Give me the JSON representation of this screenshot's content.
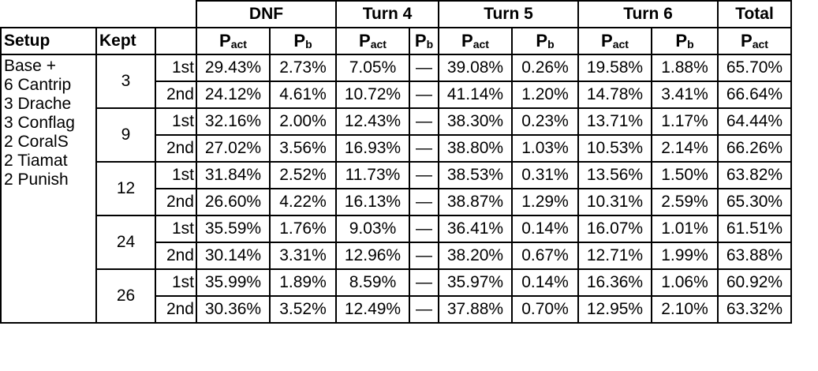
{
  "header_groups": {
    "dnf": "DNF",
    "turn4": "Turn 4",
    "turn5": "Turn 5",
    "turn6": "Turn 6",
    "total": "Total"
  },
  "subheaders": {
    "setup": "Setup",
    "kept": "Kept",
    "p_base": "P",
    "act_sub": "act",
    "b_sub": "b"
  },
  "setup_lines": [
    "Base +",
    "6 Cantrip",
    "3 Drache",
    "3 Conflag",
    "2 CoralS",
    "2 Tiamat",
    "2 Punish"
  ],
  "groups": [
    {
      "kept": "3",
      "rows": [
        {
          "ord": "1st",
          "dnf_act": "29.43%",
          "dnf_b": "2.73%",
          "t4_act": "7.05%",
          "t4_b": "—",
          "t5_act": "39.08%",
          "t5_b": "0.26%",
          "t6_act": "19.58%",
          "t6_b": "1.88%",
          "total": "65.70%"
        },
        {
          "ord": "2nd",
          "dnf_act": "24.12%",
          "dnf_b": "4.61%",
          "t4_act": "10.72%",
          "t4_b": "—",
          "t5_act": "41.14%",
          "t5_b": "1.20%",
          "t6_act": "14.78%",
          "t6_b": "3.41%",
          "total": "66.64%"
        }
      ]
    },
    {
      "kept": "9",
      "rows": [
        {
          "ord": "1st",
          "dnf_act": "32.16%",
          "dnf_b": "2.00%",
          "t4_act": "12.43%",
          "t4_b": "—",
          "t5_act": "38.30%",
          "t5_b": "0.23%",
          "t6_act": "13.71%",
          "t6_b": "1.17%",
          "total": "64.44%"
        },
        {
          "ord": "2nd",
          "dnf_act": "27.02%",
          "dnf_b": "3.56%",
          "t4_act": "16.93%",
          "t4_b": "—",
          "t5_act": "38.80%",
          "t5_b": "1.03%",
          "t6_act": "10.53%",
          "t6_b": "2.14%",
          "total": "66.26%"
        }
      ]
    },
    {
      "kept": "12",
      "rows": [
        {
          "ord": "1st",
          "dnf_act": "31.84%",
          "dnf_b": "2.52%",
          "t4_act": "11.73%",
          "t4_b": "—",
          "t5_act": "38.53%",
          "t5_b": "0.31%",
          "t6_act": "13.56%",
          "t6_b": "1.50%",
          "total": "63.82%"
        },
        {
          "ord": "2nd",
          "dnf_act": "26.60%",
          "dnf_b": "4.22%",
          "t4_act": "16.13%",
          "t4_b": "—",
          "t5_act": "38.87%",
          "t5_b": "1.29%",
          "t6_act": "10.31%",
          "t6_b": "2.59%",
          "total": "65.30%"
        }
      ]
    },
    {
      "kept": "24",
      "rows": [
        {
          "ord": "1st",
          "dnf_act": "35.59%",
          "dnf_b": "1.76%",
          "t4_act": "9.03%",
          "t4_b": "—",
          "t5_act": "36.41%",
          "t5_b": "0.14%",
          "t6_act": "16.07%",
          "t6_b": "1.01%",
          "total": "61.51%"
        },
        {
          "ord": "2nd",
          "dnf_act": "30.14%",
          "dnf_b": "3.31%",
          "t4_act": "12.96%",
          "t4_b": "—",
          "t5_act": "38.20%",
          "t5_b": "0.67%",
          "t6_act": "12.71%",
          "t6_b": "1.99%",
          "total": "63.88%"
        }
      ]
    },
    {
      "kept": "26",
      "rows": [
        {
          "ord": "1st",
          "dnf_act": "35.99%",
          "dnf_b": "1.89%",
          "t4_act": "8.59%",
          "t4_b": "—",
          "t5_act": "35.97%",
          "t5_b": "0.14%",
          "t6_act": "16.36%",
          "t6_b": "1.06%",
          "total": "60.92%"
        },
        {
          "ord": "2nd",
          "dnf_act": "30.36%",
          "dnf_b": "3.52%",
          "t4_act": "12.49%",
          "t4_b": "—",
          "t5_act": "37.88%",
          "t5_b": "0.70%",
          "t6_act": "12.95%",
          "t6_b": "2.10%",
          "total": "63.32%"
        }
      ]
    }
  ]
}
